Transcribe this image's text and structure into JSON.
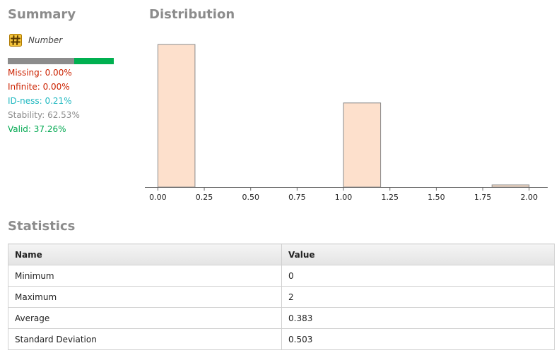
{
  "summary": {
    "title": "Summary",
    "type_label": "Number",
    "type_icon": "number-hash-icon",
    "quality_bar": {
      "segments": [
        {
          "name": "stability",
          "fraction": 0.6253,
          "color": "#8c8c8c"
        },
        {
          "name": "valid",
          "fraction": 0.3726,
          "color": "#00b050"
        }
      ]
    },
    "stats": [
      {
        "name": "missing",
        "text": "Missing: 0.00%",
        "color": "#cc2200"
      },
      {
        "name": "infinite",
        "text": "Infinite: 0.00%",
        "color": "#cc2200"
      },
      {
        "name": "id-ness",
        "text": "ID-ness: 0.21%",
        "color": "#20b8c0"
      },
      {
        "name": "stability",
        "text": "Stability: 62.53%",
        "color": "#8c8c8c"
      },
      {
        "name": "valid",
        "text": "Valid: 37.26%",
        "color": "#00a850"
      }
    ]
  },
  "distribution": {
    "title": "Distribution"
  },
  "chart_data": {
    "type": "bar",
    "title": "",
    "xlabel": "",
    "ylabel": "",
    "xlim": [
      -0.07,
      2.1
    ],
    "ticks": [
      "0.00",
      "0.25",
      "0.50",
      "0.75",
      "1.00",
      "1.25",
      "1.50",
      "1.75",
      "2.00"
    ],
    "bins": [
      {
        "x0": 0.0,
        "x1": 0.2,
        "value": 1.0
      },
      {
        "x0": 1.0,
        "x1": 1.2,
        "value": 0.59
      },
      {
        "x0": 1.8,
        "x1": 2.0,
        "value": 0.015
      }
    ],
    "bar_color": "#fde0cc",
    "grid": false
  },
  "statistics": {
    "title": "Statistics",
    "headers": [
      "Name",
      "Value"
    ],
    "rows": [
      {
        "name": "Minimum",
        "value": "0"
      },
      {
        "name": "Maximum",
        "value": "2"
      },
      {
        "name": "Average",
        "value": "0.383"
      },
      {
        "name": "Standard Deviation",
        "value": "0.503"
      }
    ]
  }
}
